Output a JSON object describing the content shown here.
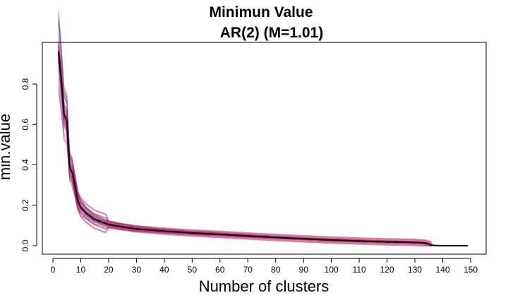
{
  "chart_data": {
    "type": "line",
    "title": "Minimun Value",
    "subtitle": "AR(2) (M=1.01)",
    "xlabel": "Number of clusters",
    "ylabel": "min.value",
    "xlim": [
      0,
      150
    ],
    "ylim": [
      0.0,
      0.95
    ],
    "xticks": [
      0,
      10,
      20,
      30,
      40,
      50,
      60,
      70,
      80,
      90,
      100,
      110,
      120,
      130,
      140,
      150
    ],
    "yticks": [
      0.0,
      0.2,
      0.4,
      0.6,
      0.8
    ],
    "grid": false,
    "legend": "none",
    "series": [
      {
        "color": "#000000",
        "role": "mean",
        "x": [
          2,
          3,
          4,
          5,
          6,
          7,
          8,
          9,
          10,
          12,
          15,
          20,
          25,
          30,
          40,
          50,
          60,
          70,
          80,
          90,
          100,
          110,
          120,
          125,
          130,
          133,
          134,
          135,
          136,
          137,
          140,
          145,
          149
        ],
        "y": [
          0.96,
          0.82,
          0.65,
          0.62,
          0.39,
          0.36,
          0.29,
          0.22,
          0.19,
          0.16,
          0.13,
          0.105,
          0.093,
          0.083,
          0.072,
          0.063,
          0.056,
          0.048,
          0.041,
          0.034,
          0.028,
          0.023,
          0.019,
          0.018,
          0.016,
          0.014,
          0.012,
          0.008,
          0.003,
          0.001,
          0.0,
          0.0,
          0.0
        ]
      }
    ],
    "band_colors": [
      "#4f6fe0",
      "#3aa0c8",
      "#7a5fd0",
      "#4aa06a",
      "#d070c0",
      "#e0507a",
      "#c2185b"
    ]
  }
}
